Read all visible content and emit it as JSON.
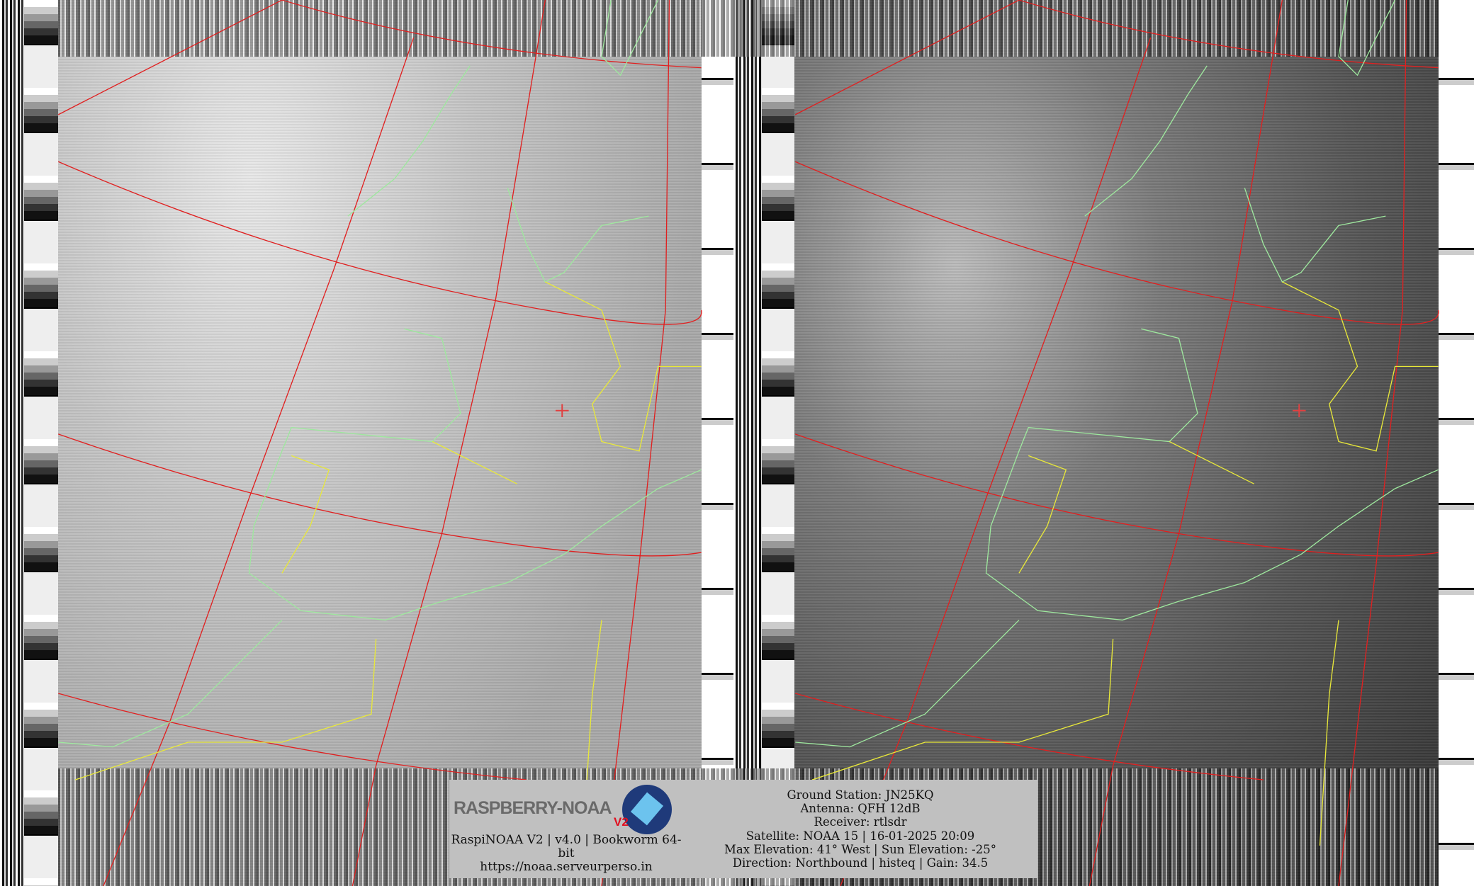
{
  "logo": {
    "text": "RASPBERRY-NOAA",
    "badge": "V2"
  },
  "footer_left": {
    "version_line": "RaspiNOAA V2 | v4.0 | Bookworm 64-bit",
    "url": "https://noaa.serveurperso.in"
  },
  "pass_info": [
    "Ground Station: JN25KQ",
    "Antenna: QFH 12dB",
    "Receiver: rtlsdr",
    "Satellite: NOAA 15 | 16-01-2025 20:09",
    "Max Elevation: 41° West | Sun Elevation: -25°",
    "Direction: Northbound | histeq | Gain: 34.5"
  ],
  "colors": {
    "grid": "#e02020",
    "coastline": "#9ee89e",
    "borders": "#e8e83a",
    "station_marker": "#e04040"
  }
}
